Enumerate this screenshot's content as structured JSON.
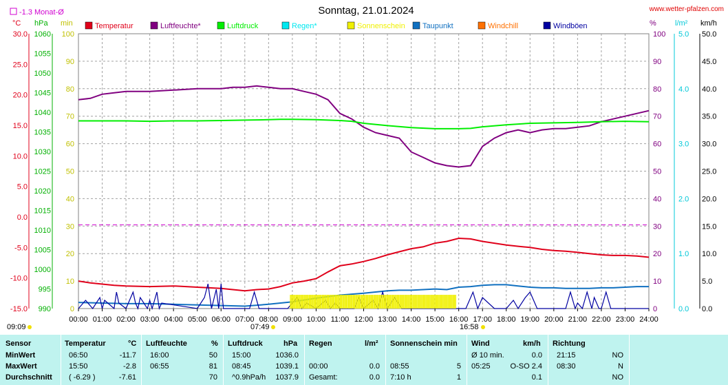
{
  "header": {
    "title": "Sonntag, 21.01.2024",
    "site": "www.wetter-pfalzen.com",
    "month_avg": "-1.3 Monat-Ø"
  },
  "axis_units": {
    "temp": "°C",
    "pressure": "hPa",
    "min": "min",
    "percent": "%",
    "rain": "l/m²",
    "wind": "km/h"
  },
  "legend": [
    {
      "name": "Temperatur",
      "color": "#e0001a"
    },
    {
      "name": "Luftfeuchte*",
      "color": "#800080"
    },
    {
      "name": "Luftdruck",
      "color": "#00ee00"
    },
    {
      "name": "Regen*",
      "color": "#00e8f0"
    },
    {
      "name": "Sonnenschein",
      "color": "#f0f000"
    },
    {
      "name": "Taupunkt",
      "color": "#1070c0"
    },
    {
      "name": "Windchill",
      "color": "#ff7000"
    },
    {
      "name": "Windböen",
      "color": "#0000a0"
    }
  ],
  "chart_data": {
    "type": "line",
    "title": "Sonntag, 21.01.2024",
    "x_ticks": [
      "00:00",
      "01:00",
      "02:00",
      "03:00",
      "04:00",
      "05:00",
      "06:00",
      "07:00",
      "08:00",
      "09:00",
      "10:00",
      "11:00",
      "12:00",
      "13:00",
      "14:00",
      "15:00",
      "16:00",
      "17:00",
      "18:00",
      "19:00",
      "20:00",
      "21:00",
      "22:00",
      "23:00",
      "24:00"
    ],
    "axes": {
      "temp_c": {
        "min": -15,
        "max": 30,
        "ticks": [
          "-15.0",
          "-10.0",
          "-5.0",
          "0.0",
          "5.0",
          "10.0",
          "15.0",
          "20.0",
          "25.0",
          "30.0"
        ]
      },
      "pressure_hpa": {
        "min": 990,
        "max": 1060,
        "ticks": [
          "990",
          "995",
          "1000",
          "1005",
          "1010",
          "1015",
          "1020",
          "1025",
          "1030",
          "1035",
          "1040",
          "1045",
          "1050",
          "1055",
          "1060"
        ]
      },
      "minutes": {
        "min": 0,
        "max": 100,
        "ticks": [
          "0",
          "10",
          "20",
          "30",
          "40",
          "50",
          "60",
          "70",
          "80",
          "90",
          "100"
        ]
      },
      "percent": {
        "min": 0,
        "max": 100,
        "ticks": [
          "0",
          "10",
          "20",
          "30",
          "40",
          "50",
          "60",
          "70",
          "80",
          "90",
          "100"
        ]
      },
      "rain_lm2": {
        "min": 0,
        "max": 5,
        "ticks": [
          "0.0",
          "1.0",
          "2.0",
          "3.0",
          "4.0",
          "5.0"
        ]
      },
      "wind_kmh": {
        "min": 0,
        "max": 50,
        "ticks": [
          "0.0",
          "5.0",
          "10.0",
          "15.0",
          "20.0",
          "25.0",
          "30.0",
          "35.0",
          "40.0",
          "45.0",
          "50.0"
        ]
      }
    },
    "month_avg_temp_c": -1.3,
    "series": [
      {
        "name": "Temperatur",
        "unit": "°C",
        "color": "#e0001a",
        "x": [
          0,
          0.5,
          1,
          1.5,
          2,
          3,
          4,
          5,
          5.5,
          6,
          6.5,
          7,
          7.5,
          8,
          8.5,
          9,
          9.5,
          10,
          10.5,
          11,
          11.5,
          12,
          12.5,
          13,
          13.5,
          14,
          14.5,
          15,
          15.5,
          16,
          16.5,
          17,
          17.5,
          18,
          18.5,
          19,
          19.5,
          20,
          20.5,
          21,
          21.5,
          22,
          22.5,
          23,
          23.5,
          24
        ],
        "y": [
          -10.5,
          -10.8,
          -11.0,
          -11.2,
          -11.3,
          -11.4,
          -11.3,
          -11.5,
          -11.6,
          -11.7,
          -11.9,
          -12.1,
          -11.9,
          -11.8,
          -11.4,
          -10.8,
          -10.5,
          -10.1,
          -9.0,
          -8.0,
          -7.7,
          -7.3,
          -6.8,
          -6.2,
          -5.7,
          -5.2,
          -4.9,
          -4.3,
          -4.0,
          -3.5,
          -3.6,
          -4.0,
          -4.3,
          -4.6,
          -4.8,
          -5.0,
          -5.3,
          -5.5,
          -5.6,
          -5.8,
          -6.0,
          -6.2,
          -6.3,
          -6.3,
          -6.4,
          -6.6
        ]
      },
      {
        "name": "Luftfeuchte*",
        "unit": "%",
        "color": "#800080",
        "x": [
          0,
          0.5,
          1,
          1.5,
          2,
          3,
          4,
          5,
          6,
          6.5,
          7,
          7.5,
          8,
          8.5,
          9,
          9.5,
          10,
          10.5,
          11,
          11.5,
          12,
          12.5,
          13,
          13.5,
          14,
          14.5,
          15,
          15.5,
          16,
          16.5,
          17,
          17.5,
          18,
          18.5,
          19,
          19.5,
          20,
          20.5,
          21,
          21.5,
          22,
          22.5,
          23,
          23.5,
          24
        ],
        "y": [
          76,
          76.5,
          78,
          78.5,
          79,
          79,
          79.5,
          80,
          80,
          80.5,
          80.5,
          81,
          80.5,
          80,
          80,
          79,
          78,
          76,
          71,
          69,
          66,
          64,
          63,
          62,
          57,
          55,
          53,
          52,
          51.5,
          52,
          59,
          62,
          64,
          65,
          64,
          65,
          65.5,
          65.5,
          66,
          66.5,
          68,
          69,
          70,
          71,
          72
        ]
      },
      {
        "name": "Luftdruck",
        "unit": "hPa",
        "color": "#00ee00",
        "x": [
          0,
          1,
          2,
          3,
          4,
          5,
          6,
          7,
          8,
          8.5,
          9,
          10,
          11,
          11.5,
          12,
          13,
          14,
          15,
          16,
          16.5,
          17,
          18,
          19,
          20,
          21,
          22,
          23,
          24
        ],
        "y": [
          1037.8,
          1037.8,
          1037.8,
          1037.7,
          1037.8,
          1037.8,
          1037.9,
          1038.0,
          1038.1,
          1038.2,
          1038.2,
          1038.1,
          1037.9,
          1037.7,
          1037.2,
          1036.6,
          1036.1,
          1035.8,
          1035.8,
          1035.9,
          1036.3,
          1036.8,
          1037.2,
          1037.3,
          1037.4,
          1037.6,
          1037.7,
          1037.6
        ]
      },
      {
        "name": "Taupunkt",
        "unit": "°C",
        "color": "#1070c0",
        "x": [
          0,
          1,
          2,
          3,
          4,
          5,
          6,
          7,
          8,
          9,
          10,
          11,
          12,
          13,
          13.5,
          14,
          14.5,
          15,
          15.5,
          16,
          16.5,
          17,
          17.5,
          18,
          18.5,
          19,
          19.5,
          20,
          20.5,
          21,
          21.5,
          22,
          22.5,
          23,
          23.5,
          24
        ],
        "y": [
          -14.0,
          -14.1,
          -14.2,
          -14.2,
          -14.3,
          -14.4,
          -14.5,
          -14.6,
          -14.3,
          -13.9,
          -13.3,
          -12.8,
          -12.5,
          -12.1,
          -12.0,
          -12.0,
          -11.9,
          -11.8,
          -11.9,
          -11.5,
          -11.4,
          -11.2,
          -11.1,
          -11.1,
          -11.3,
          -11.5,
          -11.6,
          -11.6,
          -11.7,
          -11.7,
          -11.7,
          -11.6,
          -11.6,
          -11.5,
          -11.4,
          -11.4
        ]
      },
      {
        "name": "Windböen",
        "unit": "km/h",
        "color": "#0000a0",
        "x": [
          0,
          0.3,
          0.6,
          0.9,
          1.0,
          1.1,
          1.5,
          1.6,
          1.7,
          2.0,
          2.3,
          2.4,
          2.5,
          2.6,
          2.9,
          3.0,
          3.1,
          3.3,
          3.4,
          3.5,
          5.0,
          5.3,
          5.45,
          5.6,
          5.8,
          5.9,
          6.0,
          6.1,
          6.3,
          6.5,
          7.2,
          7.4,
          7.6,
          7.8,
          8.0,
          8.8,
          9.2,
          9.4,
          9.6,
          10.0,
          10.4,
          10.6,
          10.8,
          11.0,
          11.6,
          11.8,
          12.0,
          12.4,
          12.6,
          12.8,
          13.0,
          13.3,
          13.6,
          14.0,
          16.0,
          16.3,
          16.6,
          16.8,
          17.0,
          17.5,
          18.0,
          18.3,
          18.5,
          18.8,
          19.0,
          19.3,
          19.5,
          20.0,
          20.5,
          20.7,
          20.9,
          21.0,
          21.2,
          21.4,
          21.6,
          21.7,
          21.9,
          22.0,
          22.2,
          22.4,
          23.0,
          23.5,
          24.0
        ],
        "y": [
          0,
          1.5,
          0,
          2,
          0,
          1.5,
          0,
          3,
          1,
          0,
          3,
          1,
          0,
          2,
          0,
          1.5,
          0,
          3,
          0,
          1,
          0,
          2,
          4.5,
          0,
          3.5,
          0,
          4.5,
          0,
          0,
          0,
          0,
          3,
          0,
          0,
          0,
          0,
          2,
          0,
          1,
          0,
          1.5,
          0,
          1,
          0,
          0,
          2,
          0,
          1.5,
          0,
          3,
          0,
          2,
          0,
          0,
          0,
          0,
          3,
          0,
          2,
          0,
          0,
          1.5,
          0,
          2,
          3,
          0,
          0,
          0,
          0,
          3,
          0,
          1,
          0,
          3,
          0,
          2,
          0,
          0,
          3,
          0,
          0,
          0,
          0
        ]
      },
      {
        "name": "Sonnenschein",
        "unit": "min",
        "color": "#f0f000",
        "x_start": 8.92,
        "x_end": 15.92,
        "y": 5
      }
    ],
    "annotations": {
      "sunrise": "07:49",
      "sunset": "16:58",
      "bottom_left": "09:09"
    }
  },
  "stats": {
    "headers": {
      "sensor": "Sensor",
      "temperatur": "Temperatur",
      "temp_unit": "°C",
      "luftfeuchte": "Luftfeuchte",
      "lf_unit": "%",
      "luftdruck": "Luftdruck",
      "ld_unit": "hPa",
      "regen": "Regen",
      "regen_unit": "l/m²",
      "sonne": "Sonnenschein min",
      "wind": "Wind",
      "wind_unit": "km/h",
      "richtung": "Richtung"
    },
    "rows": [
      {
        "label": "MinWert",
        "t_time": "06:50",
        "t_val": "-11.7",
        "h_time": "16:00",
        "h_val": "50",
        "p_time": "15:00",
        "p_val": "1036.0",
        "r_time": "",
        "r_val": "",
        "s_time": "",
        "s_val": "",
        "w_time": "Ø 10 min.",
        "w_val": "0.0",
        "d_time": "21:15",
        "d_val": "NO"
      },
      {
        "label": "MaxWert",
        "t_time": "15:50",
        "t_val": "-2.8",
        "h_time": "06:55",
        "h_val": "81",
        "p_time": "08:45",
        "p_val": "1039.1",
        "r_time": "00:00",
        "r_val": "0.0",
        "s_time": "08:55",
        "s_val": "5",
        "w_time": "05:25",
        "w_val": "O-SO 2.4",
        "d_time": "08:30",
        "d_val": "N"
      },
      {
        "label": "Durchschnitt",
        "t_time": "( -6.29 )",
        "t_val": "-7.61",
        "h_time": "",
        "h_val": "70",
        "p_time": "^0.9hPa/h",
        "p_val": "1037.9",
        "r_time": "Gesamt:",
        "r_val": "0.0",
        "s_time": "7:10 h",
        "s_val": "1",
        "w_time": "",
        "w_val": "0.1",
        "d_time": "",
        "d_val": "NO"
      }
    ]
  }
}
